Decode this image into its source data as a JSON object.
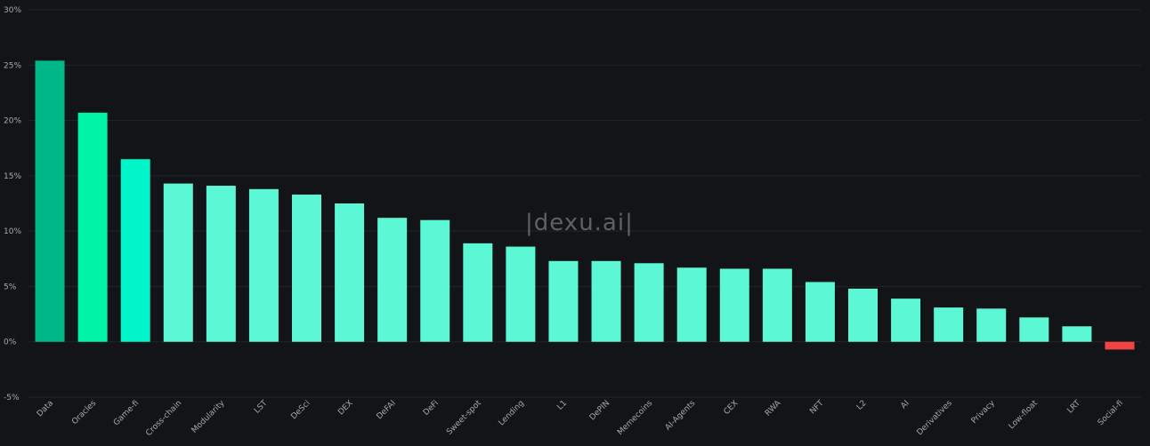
{
  "watermark": "|dexu.ai|",
  "chart_data": {
    "type": "bar",
    "title": "",
    "xlabel": "",
    "ylabel": "",
    "ylim": [
      -5,
      30
    ],
    "yticks": [
      -5,
      0,
      5,
      10,
      15,
      20,
      25,
      30
    ],
    "ytick_suffix": "%",
    "grid": true,
    "categories": [
      "Data",
      "Oracles",
      "Game-fi",
      "Cross-chain",
      "Modularity",
      "LST",
      "DeSci",
      "DEX",
      "DeFAI",
      "DeFi",
      "Sweet-spot",
      "Lending",
      "L1",
      "DePIN",
      "Memecoins",
      "AI-Agents",
      "CEX",
      "RWA",
      "NFT",
      "L2",
      "AI",
      "Derivatives",
      "Privacy",
      "Low-float",
      "LRT",
      "Social-fi"
    ],
    "values": [
      25.4,
      20.7,
      16.5,
      14.3,
      14.1,
      13.8,
      13.3,
      12.5,
      11.2,
      11.0,
      8.9,
      8.6,
      7.3,
      7.3,
      7.1,
      6.7,
      6.6,
      6.6,
      5.4,
      4.8,
      3.9,
      3.1,
      3.0,
      2.2,
      1.4,
      -0.7
    ],
    "colors": {
      "top": "#00b887",
      "second": "#00f5a8",
      "third": "#00f5c8",
      "positive": "#5cf7d4",
      "negative": "#ef4444",
      "background": "#131417",
      "grid": "#22242a",
      "text": "#a8a9ad"
    }
  }
}
